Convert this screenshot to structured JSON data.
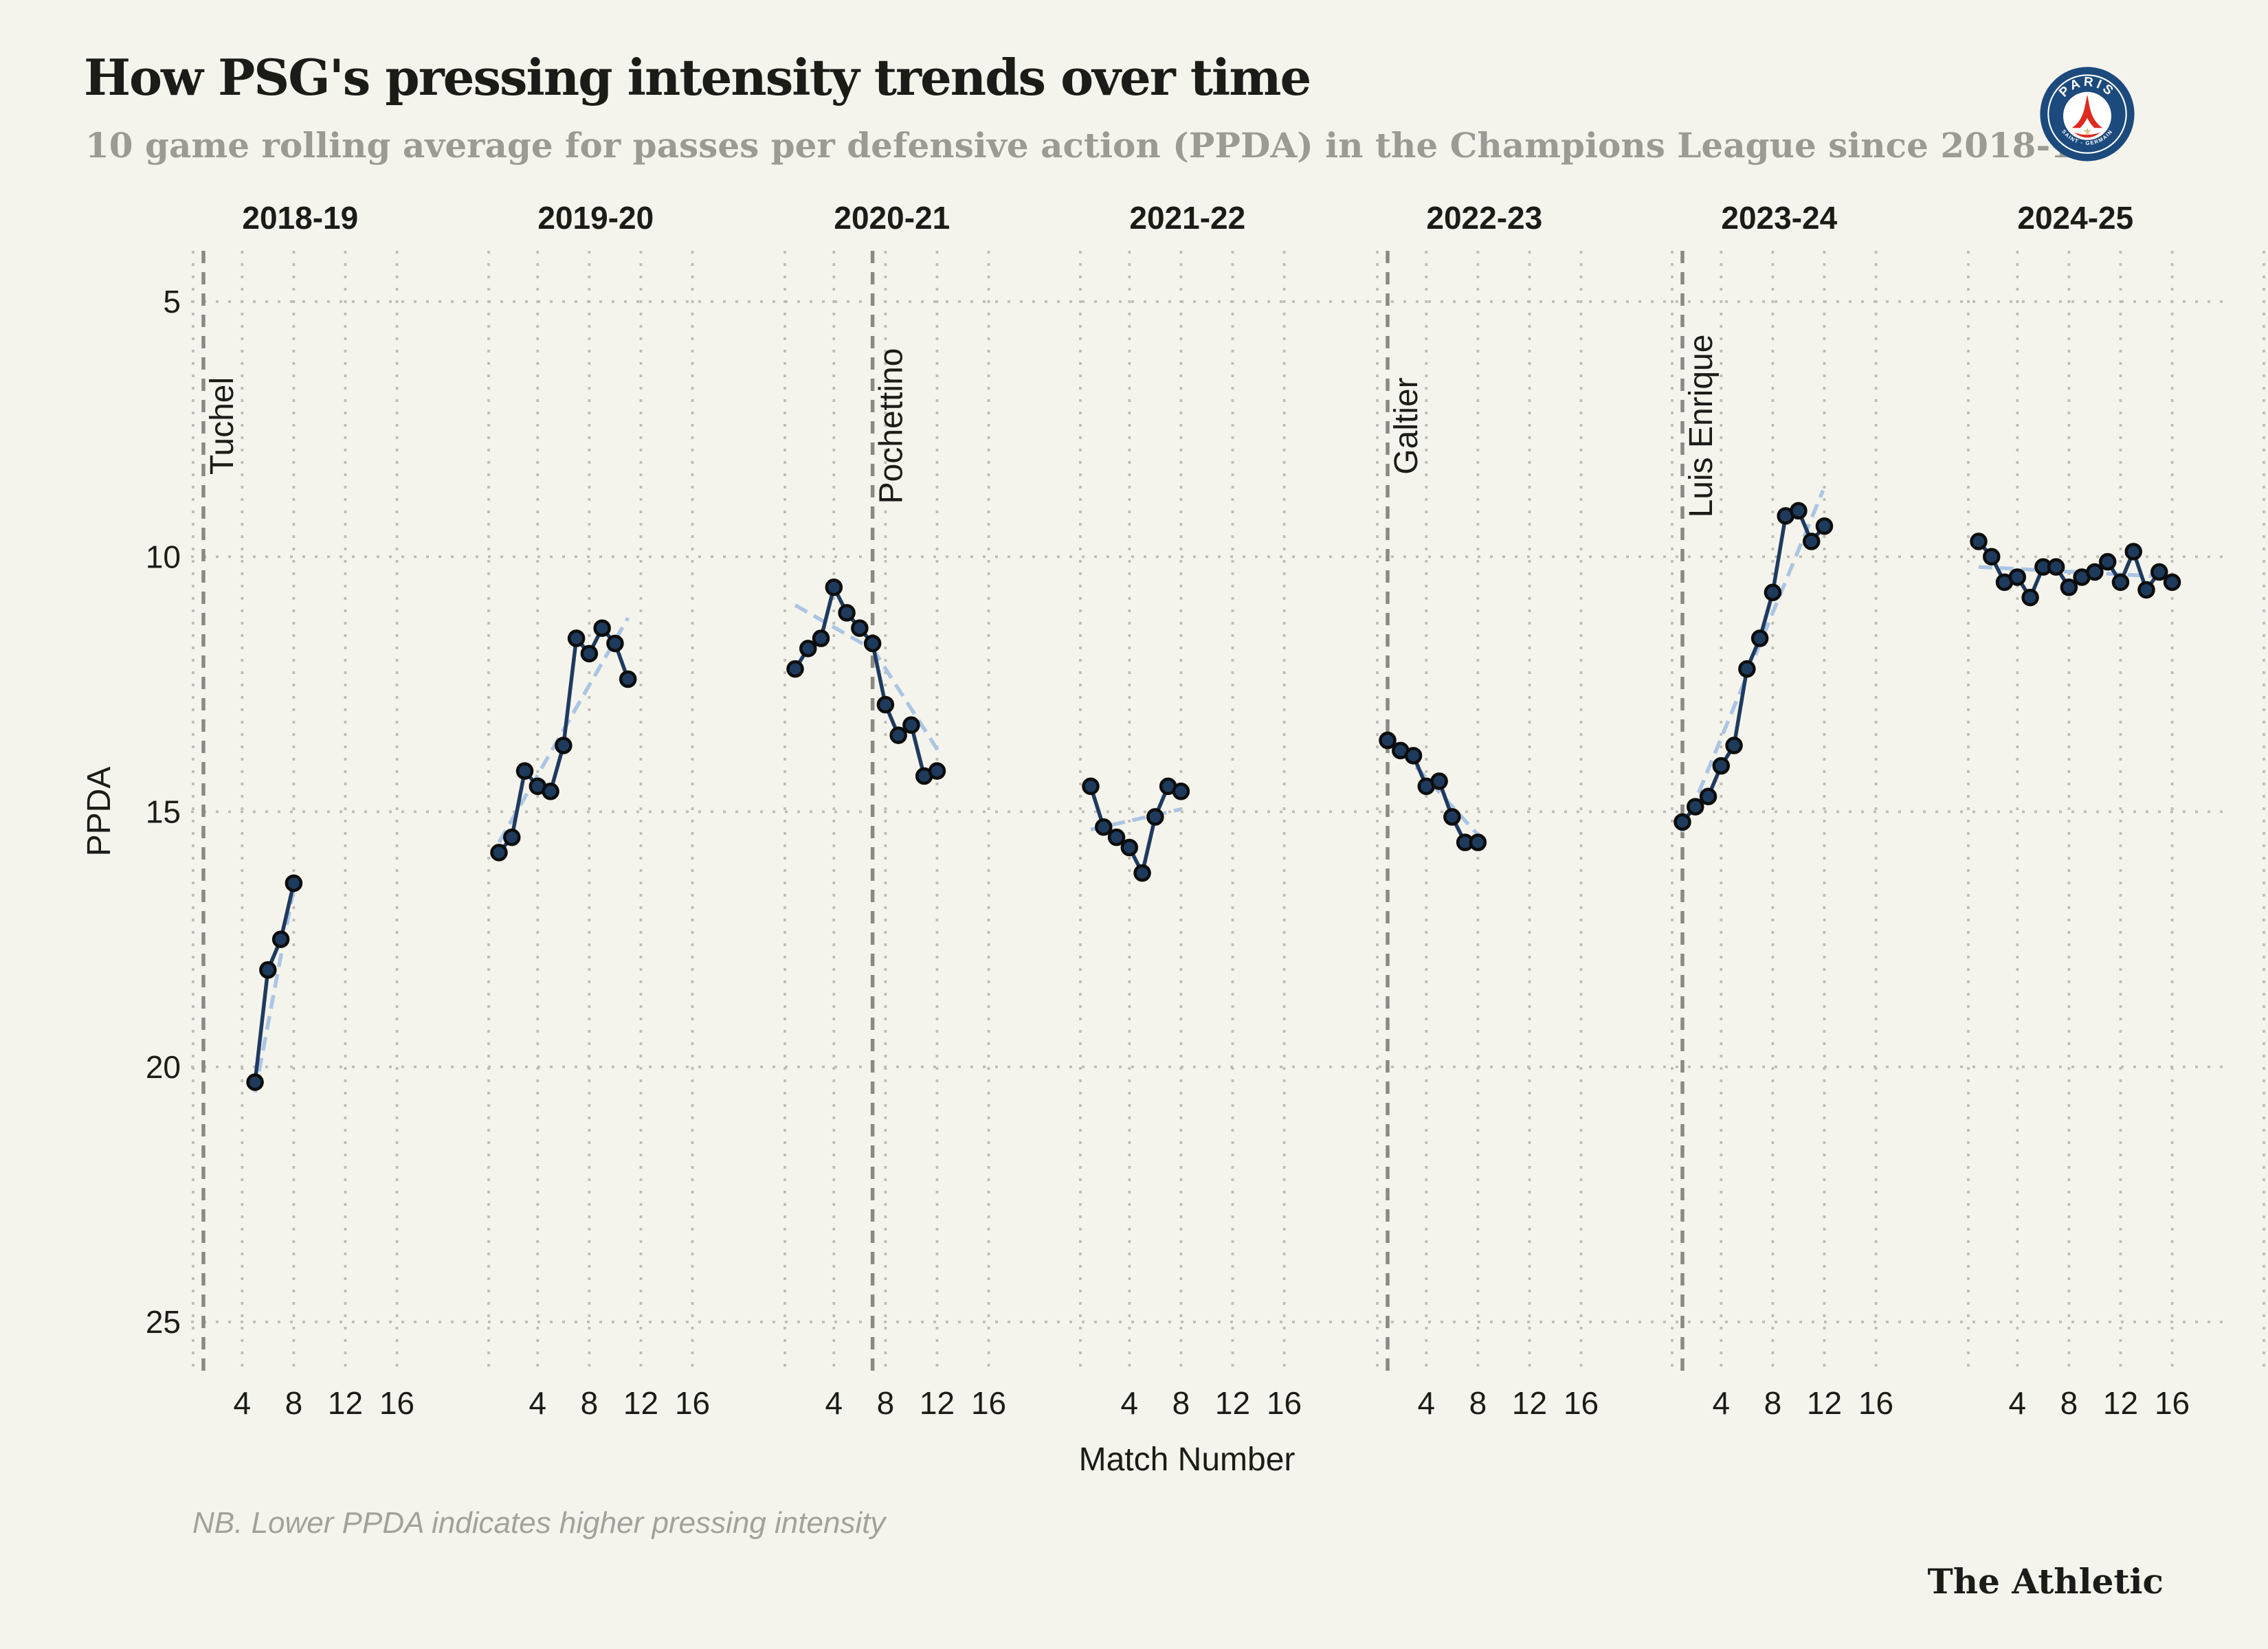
{
  "header": {
    "title": "How PSG's pressing intensity trends over time",
    "subtitle": "10 game rolling average for passes per defensive action (PPDA) in the Champions League since 2018-19"
  },
  "logo": {
    "name": "psg-crest",
    "top_text": "PARIS",
    "bottom_text": "SAINT - GERMAIN"
  },
  "chart_data": {
    "type": "line",
    "xlabel": "Match Number",
    "ylabel": "PPDA",
    "y_ticks": [
      5,
      10,
      15,
      20,
      25
    ],
    "x_ticks": [
      4,
      8,
      12,
      16
    ],
    "ylim": [
      4.5,
      26
    ],
    "y_axis_inverted": true,
    "grid": "dotted",
    "legend": "none",
    "panels": [
      {
        "season": "2018-19",
        "manager_line": {
          "label": "Tuchel",
          "match": 1
        },
        "x": [
          5,
          6,
          7,
          8
        ],
        "y": [
          20.3,
          18.1,
          17.5,
          16.4
        ],
        "trend": [
          {
            "x": [
              5,
              8
            ],
            "y": [
              20.5,
              16.5
            ]
          }
        ]
      },
      {
        "season": "2019-20",
        "manager_line": null,
        "x": [
          1,
          2,
          3,
          4,
          5,
          6,
          7,
          8,
          9,
          10,
          11
        ],
        "y": [
          15.8,
          15.5,
          14.2,
          14.5,
          14.6,
          13.7,
          11.6,
          11.9,
          11.4,
          11.7,
          12.4
        ],
        "trend": [
          {
            "x": [
              1,
              11
            ],
            "y": [
              15.6,
              11.2
            ]
          }
        ]
      },
      {
        "season": "2020-21",
        "manager_line": {
          "label": "Pochettino",
          "match": 7
        },
        "x": [
          1,
          2,
          3,
          4,
          5,
          6,
          7,
          8,
          9,
          10,
          11,
          12
        ],
        "y": [
          12.2,
          11.8,
          11.6,
          10.6,
          11.1,
          11.4,
          11.7,
          12.9,
          13.5,
          13.3,
          14.3,
          14.2
        ],
        "trend": [
          {
            "x": [
              1,
              6.9
            ],
            "y": [
              10.95,
              11.8
            ]
          },
          {
            "x": [
              7,
              12.2
            ],
            "y": [
              11.8,
              13.85
            ]
          }
        ]
      },
      {
        "season": "2021-22",
        "manager_line": null,
        "x": [
          1,
          2,
          3,
          4,
          5,
          6,
          7,
          8
        ],
        "y": [
          14.5,
          15.3,
          15.5,
          15.7,
          16.2,
          15.1,
          14.5,
          14.6
        ],
        "trend": [
          {
            "x": [
              1,
              8
            ],
            "y": [
              15.35,
              14.95
            ]
          }
        ]
      },
      {
        "season": "2022-23",
        "manager_line": {
          "label": "Galtier",
          "match": 1
        },
        "x": [
          1,
          2,
          3,
          4,
          5,
          6,
          7,
          8
        ],
        "y": [
          13.6,
          13.8,
          13.9,
          14.5,
          14.4,
          15.1,
          15.6,
          15.6
        ],
        "trend": [
          {
            "x": [
              1,
              8
            ],
            "y": [
              13.5,
              15.45
            ]
          }
        ]
      },
      {
        "season": "2023-24",
        "manager_line": {
          "label": "Luis Enrique",
          "match": 1
        },
        "x": [
          1,
          2,
          3,
          4,
          5,
          6,
          7,
          8,
          9,
          10,
          11,
          12
        ],
        "y": [
          15.2,
          14.9,
          14.7,
          14.1,
          13.7,
          12.2,
          11.6,
          10.7,
          9.2,
          9.1,
          9.7,
          9.4
        ],
        "trend": [
          {
            "x": [
              1,
              11.9
            ],
            "y": [
              15.4,
              8.7
            ]
          }
        ]
      },
      {
        "season": "2024-25",
        "manager_line": null,
        "x": [
          1,
          2,
          3,
          4,
          5,
          6,
          7,
          8,
          9,
          10,
          11,
          12,
          13,
          14,
          15,
          16
        ],
        "y": [
          9.7,
          10.0,
          10.5,
          10.4,
          10.8,
          10.2,
          10.2,
          10.6,
          10.4,
          10.3,
          10.1,
          10.5,
          9.9,
          10.65,
          10.3,
          10.5
        ],
        "trend": [
          {
            "x": [
              1,
              16
            ],
            "y": [
              10.2,
              10.4
            ]
          }
        ]
      }
    ]
  },
  "footer": {
    "note": "NB. Lower PPDA indicates higher pressing intensity",
    "brand": "The Athletic"
  },
  "colors": {
    "background": "#f4f4ed",
    "ink": "#1b1b18",
    "subtitle_gray": "#9b9b94",
    "grid": "#bdbdb6",
    "manager_line": "#8a8a83",
    "series_line": "#1f3a5e",
    "point_fill": "#1e3a5c",
    "point_stroke": "#0d0d0d",
    "trend": "#abc5e3",
    "footnote_gray": "#a2a29b",
    "crest_navy": "#1c4a7d",
    "crest_red": "#dd2b20",
    "crest_gold": "#c8a33c"
  }
}
